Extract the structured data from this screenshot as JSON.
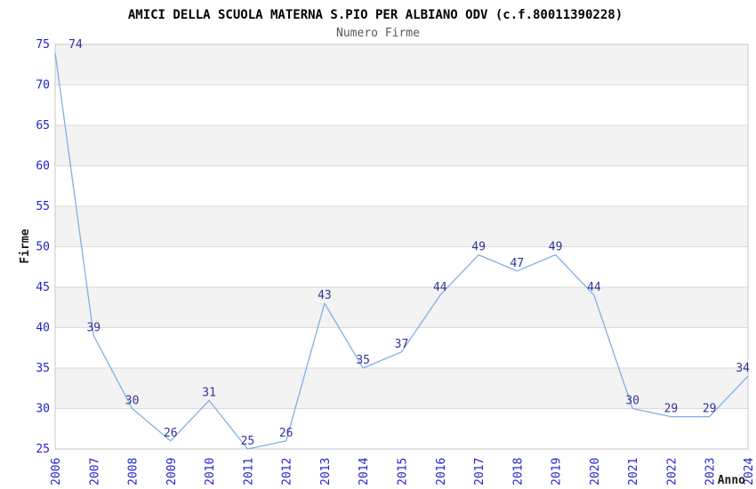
{
  "header": {
    "title": "AMICI DELLA SCUOLA MATERNA S.PIO PER ALBIANO ODV (c.f.80011390228)",
    "subtitle": "Numero Firme"
  },
  "chart_data": {
    "type": "line",
    "title": "AMICI DELLA SCUOLA MATERNA S.PIO PER ALBIANO ODV (c.f.80011390228)",
    "subtitle": "Numero Firme",
    "xlabel": "Anno",
    "ylabel": "Firme",
    "x": [
      "2006",
      "2007",
      "2008",
      "2009",
      "2010",
      "2011",
      "2012",
      "2013",
      "2014",
      "2015",
      "2016",
      "2017",
      "2018",
      "2019",
      "2020",
      "2021",
      "2022",
      "2023",
      "2024"
    ],
    "values": [
      74,
      39,
      30,
      26,
      31,
      25,
      26,
      43,
      35,
      37,
      44,
      49,
      47,
      49,
      44,
      30,
      29,
      29,
      34
    ],
    "ylim": [
      25,
      75
    ],
    "ytick_step": 5,
    "yticks": [
      25,
      30,
      35,
      40,
      45,
      50,
      55,
      60,
      65,
      70,
      75
    ],
    "grid": true,
    "legend_visible": false,
    "data_labels_visible": true,
    "colors": {
      "line": "#7fb0e6",
      "tick_label": "#2222cc",
      "data_label": "#333399",
      "band": "#f3f3f3",
      "gridline": "#dadada",
      "border": "#c8c8c8",
      "subtitle": "#595959",
      "title": "#000000",
      "background": "#ffffff"
    }
  }
}
